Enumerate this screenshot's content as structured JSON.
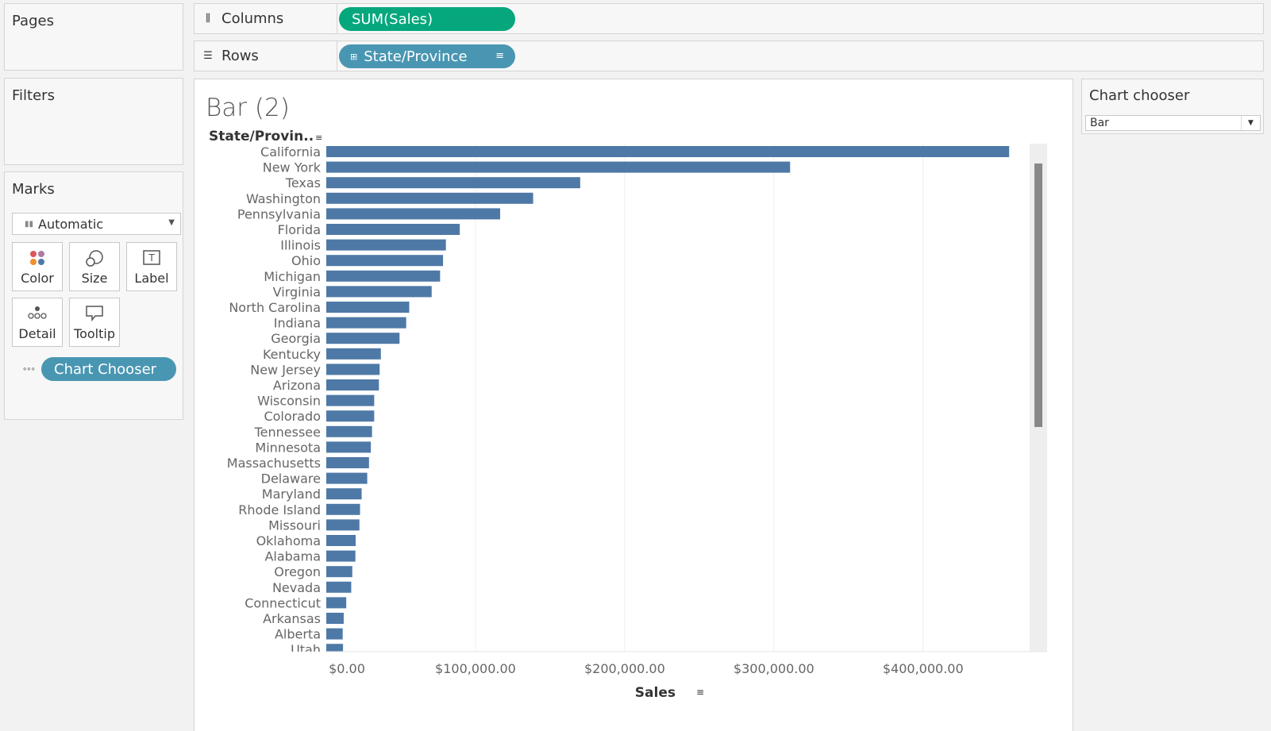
{
  "cards": {
    "pages": "Pages",
    "filters": "Filters",
    "marks": "Marks"
  },
  "shelves": {
    "columns_label": "Columns",
    "columns_pill": "SUM(Sales)",
    "rows_label": "Rows",
    "rows_pill": "State/Province"
  },
  "marks": {
    "type": "Automatic",
    "buttons": [
      "Color",
      "Size",
      "Label",
      "Detail",
      "Tooltip"
    ],
    "field_pill": "Chart Chooser"
  },
  "view": {
    "title": "Bar (2)",
    "row_header": "State/Provin.."
  },
  "chooser": {
    "title": "Chart chooser",
    "value": "Bar"
  },
  "colors": {
    "bar": "#4e79a7",
    "pill_green": "#06a77d",
    "pill_blue": "#4996b2"
  },
  "chart_data": {
    "type": "bar",
    "orientation": "horizontal",
    "title": "Bar (2)",
    "xlabel": "Sales",
    "ylabel": "State/Provin..",
    "xlim": [
      0,
      480000
    ],
    "x_ticks": [
      "$0.00",
      "$100,000.00",
      "$200,000.00",
      "$300,000.00",
      "$400,000.00"
    ],
    "x_tick_values": [
      0,
      100000,
      200000,
      300000,
      400000
    ],
    "grid": "vertical",
    "categories": [
      "California",
      "New York",
      "Texas",
      "Washington",
      "Pennsylvania",
      "Florida",
      "Illinois",
      "Ohio",
      "Michigan",
      "Virginia",
      "North Carolina",
      "Indiana",
      "Georgia",
      "Kentucky",
      "New Jersey",
      "Arizona",
      "Wisconsin",
      "Colorado",
      "Tennessee",
      "Minnesota",
      "Massachusetts",
      "Delaware",
      "Maryland",
      "Rhode Island",
      "Missouri",
      "Oklahoma",
      "Alabama",
      "Oregon",
      "Nevada",
      "Connecticut",
      "Arkansas",
      "Alberta",
      "Utah"
    ],
    "values": [
      457688,
      310876,
      170188,
      138641,
      116512,
      89474,
      80166,
      78258,
      76270,
      70637,
      55603,
      53556,
      49096,
      36592,
      35764,
      35282,
      32115,
      32108,
      30662,
      29863,
      28634,
      27451,
      23706,
      22628,
      22205,
      19683,
      19511,
      17431,
      16729,
      13384,
      11678,
      11000,
      11220
    ]
  }
}
